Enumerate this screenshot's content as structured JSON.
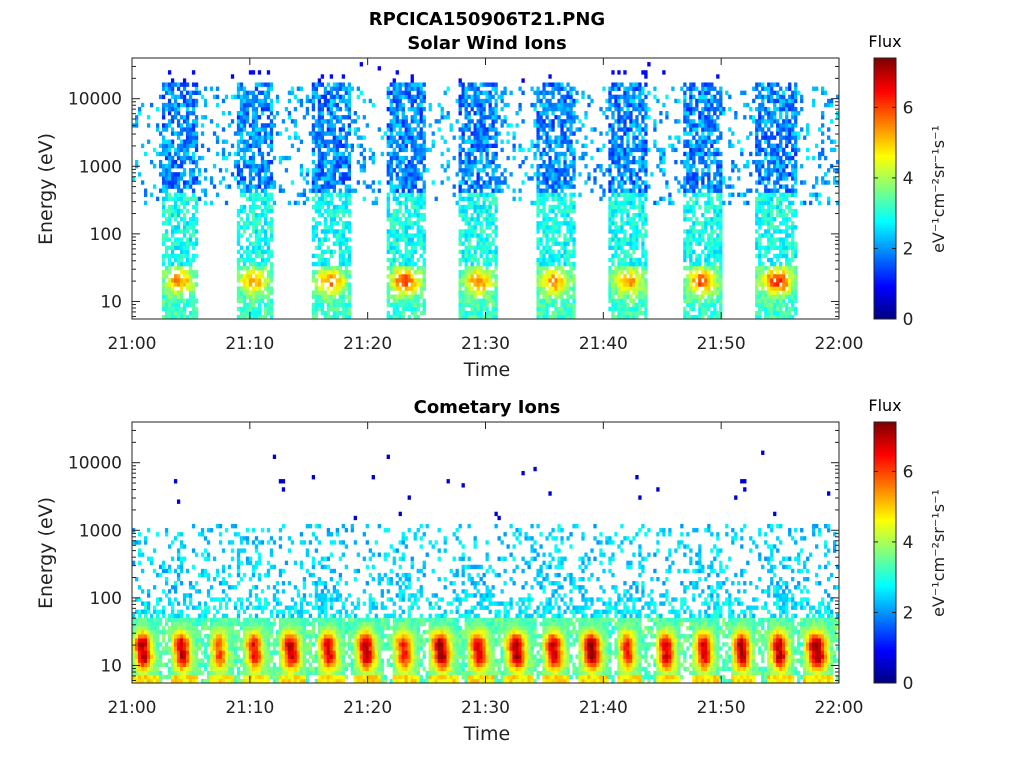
{
  "figure": {
    "title": "RPCICA150906T21.PNG"
  },
  "colormap": "jet",
  "chart_data": [
    {
      "type": "heatmap",
      "title": "Solar Wind Ions",
      "xlabel": "Time",
      "ylabel": "Energy (eV)",
      "y_scale": "log",
      "xlim": [
        "21:00",
        "22:00"
      ],
      "ylim": [
        5.5,
        40000
      ],
      "x_ticks": [
        "21:00",
        "21:10",
        "21:20",
        "21:30",
        "21:40",
        "21:50",
        "22:00"
      ],
      "y_ticks": [
        "10",
        "100",
        "1000",
        "10000"
      ],
      "y_tick_values": [
        10,
        100,
        1000,
        10000
      ],
      "colorbar": {
        "title": "Flux",
        "label": "eV⁻¹cm⁻²sr⁻¹s⁻¹",
        "range": [
          0,
          7.4
        ],
        "ticks": [
          "0",
          "2",
          "4",
          "6"
        ],
        "tick_values": [
          0,
          2,
          4,
          6
        ]
      },
      "sweeps": [
        {
          "start": "21:02.5",
          "end": "21:05.6",
          "peak_flux": 5.6
        },
        {
          "start": "21:08.8",
          "end": "21:12.0",
          "peak_flux": 5.4
        },
        {
          "start": "21:15.2",
          "end": "21:18.5",
          "peak_flux": 5.6
        },
        {
          "start": "21:21.5",
          "end": "21:24.8",
          "peak_flux": 6.2
        },
        {
          "start": "21:27.8",
          "end": "21:31.0",
          "peak_flux": 5.6
        },
        {
          "start": "21:34.2",
          "end": "21:37.5",
          "peak_flux": 5.6
        },
        {
          "start": "21:40.5",
          "end": "21:43.8",
          "peak_flux": 5.4
        },
        {
          "start": "21:46.8",
          "end": "21:50.0",
          "peak_flux": 6.0
        },
        {
          "start": "21:53.0",
          "end": "21:56.5",
          "peak_flux": 6.4
        }
      ]
    },
    {
      "type": "heatmap",
      "title": "Cometary Ions",
      "xlabel": "Time",
      "ylabel": "Energy (eV)",
      "y_scale": "log",
      "xlim": [
        "21:00",
        "22:00"
      ],
      "ylim": [
        5.5,
        40000
      ],
      "x_ticks": [
        "21:00",
        "21:10",
        "21:20",
        "21:30",
        "21:40",
        "21:50",
        "22:00"
      ],
      "y_ticks": [
        "10",
        "100",
        "1000",
        "10000"
      ],
      "y_tick_values": [
        10,
        100,
        1000,
        10000
      ],
      "colorbar": {
        "title": "Flux",
        "label": "eV⁻¹cm⁻²sr⁻¹s⁻¹",
        "range": [
          0,
          7.4
        ],
        "ticks": [
          "0",
          "2",
          "4",
          "6"
        ],
        "tick_values": [
          0,
          2,
          4,
          6
        ]
      },
      "bursts": [
        {
          "start": "21:00.0",
          "end": "21:02.2",
          "peak_flux": 7.2
        },
        {
          "start": "21:03.3",
          "end": "21:05.5",
          "peak_flux": 7.0
        },
        {
          "start": "21:06.5",
          "end": "21:08.6",
          "peak_flux": 6.0
        },
        {
          "start": "21:09.5",
          "end": "21:11.6",
          "peak_flux": 6.6
        },
        {
          "start": "21:12.5",
          "end": "21:14.8",
          "peak_flux": 7.0
        },
        {
          "start": "21:15.7",
          "end": "21:18.0",
          "peak_flux": 6.8
        },
        {
          "start": "21:18.9",
          "end": "21:21.2",
          "peak_flux": 7.2
        },
        {
          "start": "21:22.1",
          "end": "21:24.4",
          "peak_flux": 6.4
        },
        {
          "start": "21:25.2",
          "end": "21:27.6",
          "peak_flux": 7.4
        },
        {
          "start": "21:28.4",
          "end": "21:30.8",
          "peak_flux": 6.8
        },
        {
          "start": "21:31.6",
          "end": "21:34.0",
          "peak_flux": 7.2
        },
        {
          "start": "21:34.8",
          "end": "21:37.2",
          "peak_flux": 7.0
        },
        {
          "start": "21:38.0",
          "end": "21:40.4",
          "peak_flux": 7.4
        },
        {
          "start": "21:41.2",
          "end": "21:43.2",
          "peak_flux": 6.4
        },
        {
          "start": "21:44.4",
          "end": "21:46.6",
          "peak_flux": 7.0
        },
        {
          "start": "21:47.6",
          "end": "21:49.8",
          "peak_flux": 6.8
        },
        {
          "start": "21:50.8",
          "end": "21:53.0",
          "peak_flux": 7.2
        },
        {
          "start": "21:54.0",
          "end": "21:56.2",
          "peak_flux": 7.2
        },
        {
          "start": "21:57.0",
          "end": "21:59.6",
          "peak_flux": 7.4
        }
      ]
    }
  ]
}
